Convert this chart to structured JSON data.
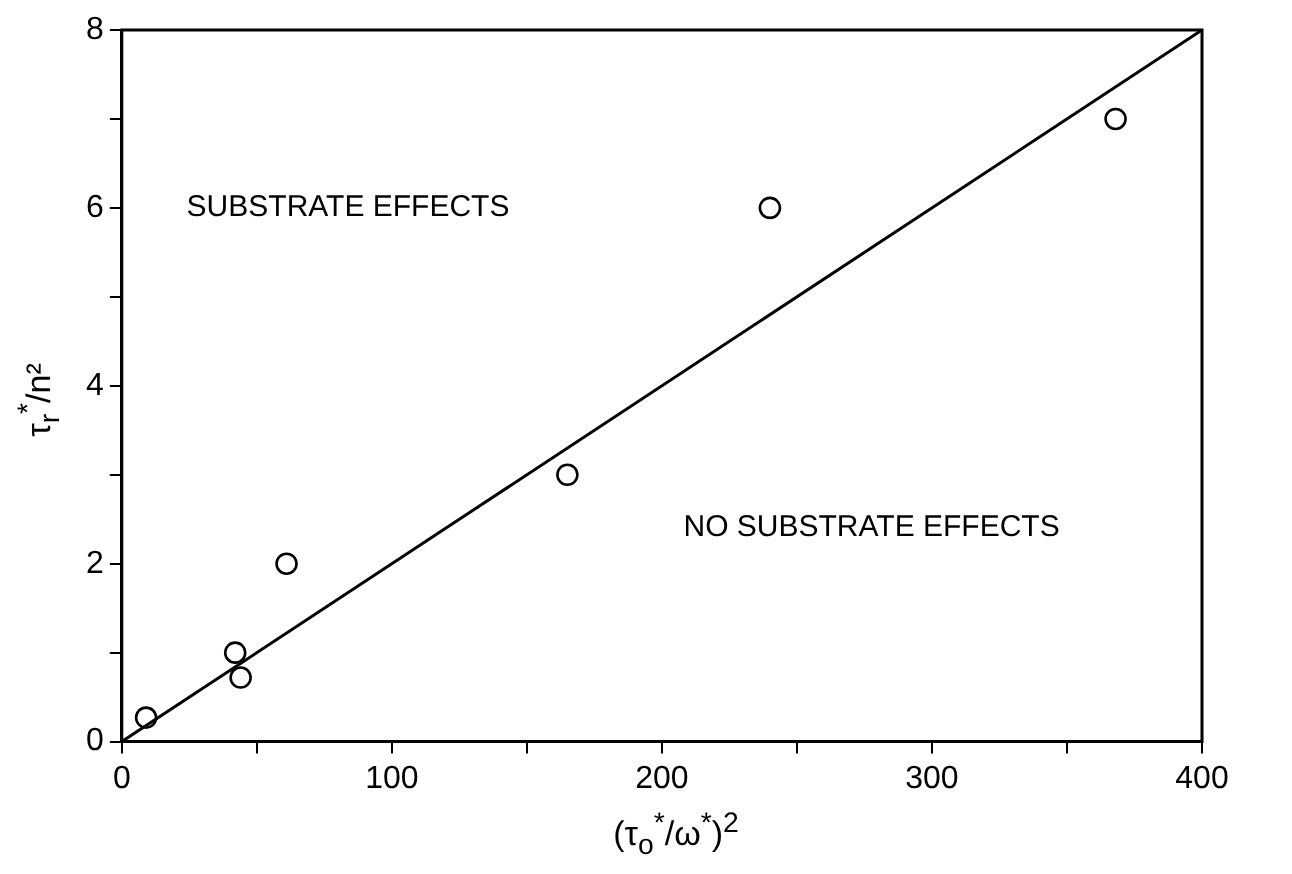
{
  "chart_data": {
    "type": "scatter",
    "xlabel": "(τ$_{o}$$^{*}$/ω$^{*}$)$^{2}$",
    "ylabel": "τ$_{r}$$^{*}$/n²",
    "x": [
      9,
      42,
      44,
      61,
      165,
      240,
      368
    ],
    "series": [
      {
        "type": "scatter",
        "color": "#000000",
        "marker": "circle",
        "values": [
          0.27,
          1.0,
          0.72,
          2.0,
          3.0,
          6.0,
          7.0
        ]
      },
      {
        "type": "line",
        "color": "#000000",
        "marker": "none",
        "line_style": "solid",
        "x": [
          0,
          400
        ],
        "values": [
          0,
          8
        ]
      }
    ],
    "xlim": [
      0,
      400
    ],
    "ylim": [
      0,
      8
    ],
    "xticks": [
      0,
      {
        "value": 50,
        "label": null
      },
      100,
      {
        "value": 150,
        "label": null
      },
      200,
      {
        "value": 250,
        "label": null
      },
      300,
      {
        "value": 350,
        "label": null
      },
      400
    ],
    "yticks": [
      0,
      {
        "value": 1,
        "label": null
      },
      2,
      {
        "value": 3,
        "label": null
      },
      4,
      {
        "value": 5,
        "label": null
      },
      6,
      {
        "value": 7,
        "label": null
      },
      8
    ],
    "annotations": [
      "SUBSTRATE EFFECTS",
      "NO SUBSTRATE EFFECTS"
    ],
    "grid": false,
    "legend": false
  }
}
